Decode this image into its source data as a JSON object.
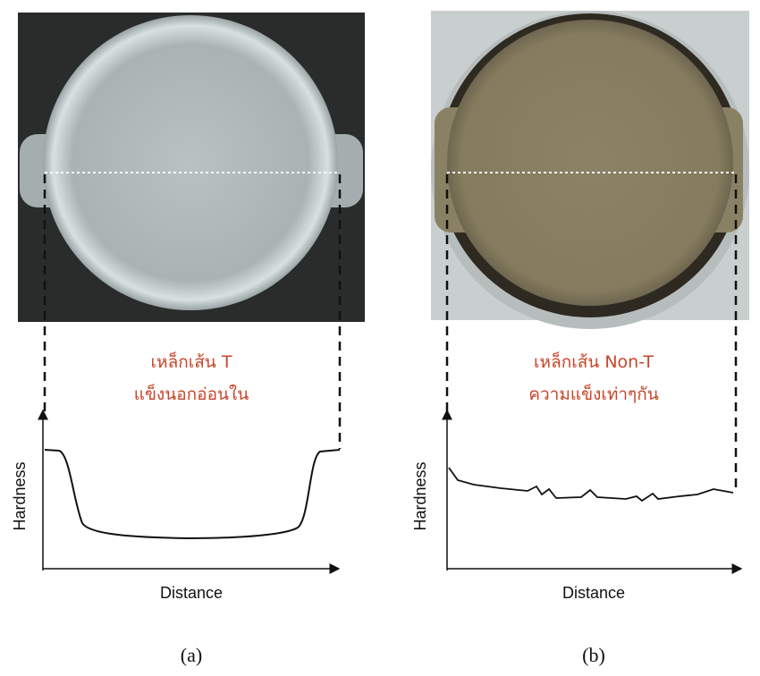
{
  "panels": [
    {
      "label_lines": [
        "เหล็กเส้น T",
        "แข็งนอกอ่อนใน"
      ],
      "y_axis_label": "Hardness",
      "x_axis_label": "Distance",
      "caption": "(a)"
    },
    {
      "label_lines": [
        "เหล็กเส้น Non-T",
        "ความแข็งเท่าๆกัน"
      ],
      "y_axis_label": "Hardness",
      "x_axis_label": "Distance",
      "caption": "(b)"
    }
  ]
}
